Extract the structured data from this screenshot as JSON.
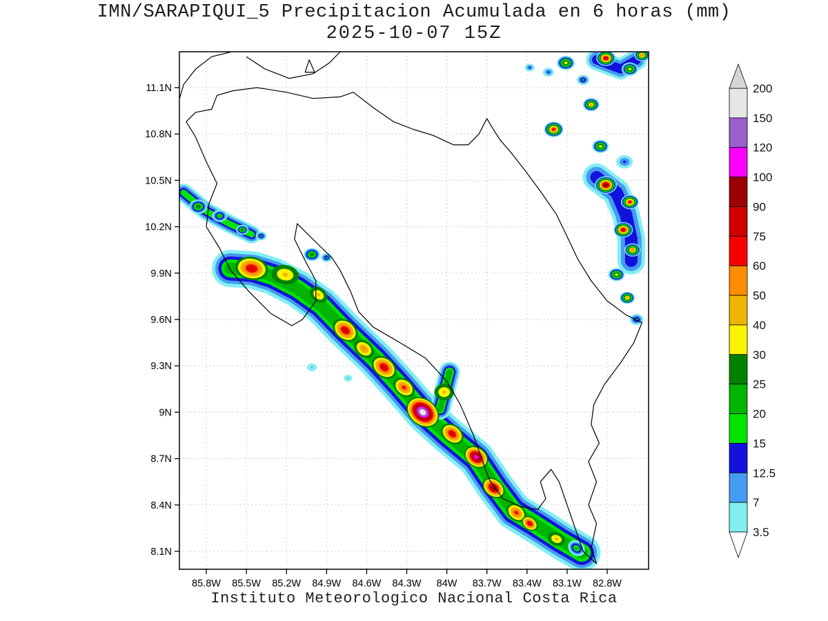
{
  "header": {
    "title_line1": "IMN/SARAPIQUI_5 Precipitacion Acumulada en 6 horas (mm)",
    "title_line2": "2025-10-07 15Z"
  },
  "footer": {
    "caption": "Instituto Meteorologico Nacional Costa Rica"
  },
  "chart_data": {
    "type": "heatmap",
    "title": "IMN/SARAPIQUI_5 Precipitacion Acumulada en 6 horas (mm)",
    "subtitle": "2025-10-07 15Z",
    "variable": "6-hour accumulated precipitation",
    "units": "mm",
    "axes": {
      "lon": {
        "labels": [
          "85.8W",
          "85.5W",
          "85.2W",
          "84.9W",
          "84.6W",
          "84.3W",
          "84W",
          "83.7W",
          "83.4W",
          "83.1W",
          "82.8W"
        ],
        "values": [
          85.8,
          85.5,
          85.2,
          84.9,
          84.6,
          84.3,
          84.0,
          83.7,
          83.4,
          83.1,
          82.8
        ]
      },
      "lat": {
        "labels": [
          "11.1N",
          "10.8N",
          "10.5N",
          "10.2N",
          "9.9N",
          "9.6N",
          "9.3N",
          "9N",
          "8.7N",
          "8.4N",
          "8.1N"
        ],
        "values": [
          11.1,
          10.8,
          10.5,
          10.2,
          9.9,
          9.6,
          9.3,
          9.0,
          8.7,
          8.4,
          8.1
        ]
      },
      "grid": "dotted"
    },
    "colorbar": {
      "boundaries_top_to_bottom": [
        200,
        150,
        120,
        100,
        90,
        75,
        60,
        50,
        40,
        30,
        25,
        20,
        15,
        12.5,
        7,
        3.5
      ],
      "boundary_labels": [
        "200",
        "150",
        "120",
        "100",
        "90",
        "75",
        "60",
        "50",
        "40",
        "30",
        "25",
        "20",
        "15",
        "12.5",
        "7",
        "3.5"
      ],
      "levels_ascending": [
        3.5,
        7,
        12.5,
        15,
        20,
        25,
        30,
        40,
        50,
        60,
        75,
        90,
        100,
        120,
        150
      ],
      "band_colors": {
        "3.5": "#82eef2",
        "7": "#459bf0",
        "12.5": "#1212dc",
        "15": "#00e400",
        "20": "#00b400",
        "25": "#008200",
        "30": "#fbf300",
        "40": "#eeb400",
        "50": "#fd8d00",
        "60": "#f80000",
        "75": "#d00000",
        "90": "#9c0000",
        "100": "#fa00fa",
        "120": "#9a5fce",
        "150": "#e6e6e6"
      },
      "over_color": "#d6d6d6",
      "under_color": "#ffffff"
    },
    "map_outline": [
      {
        "name": "costa-rica-outline",
        "closed": true,
        "points": [
          [
            85.72,
            11.05
          ],
          [
            85.6,
            11.08
          ],
          [
            85.42,
            11.1
          ],
          [
            85.2,
            11.07
          ],
          [
            85.0,
            11.03
          ],
          [
            84.8,
            11.04
          ],
          [
            84.7,
            11.07
          ],
          [
            84.55,
            10.97
          ],
          [
            84.4,
            10.88
          ],
          [
            84.25,
            10.83
          ],
          [
            84.1,
            10.79
          ],
          [
            83.95,
            10.73
          ],
          [
            83.84,
            10.73
          ],
          [
            83.76,
            10.8
          ],
          [
            83.7,
            10.9
          ],
          [
            83.66,
            10.84
          ],
          [
            83.6,
            10.76
          ],
          [
            83.52,
            10.68
          ],
          [
            83.42,
            10.57
          ],
          [
            83.3,
            10.43
          ],
          [
            83.18,
            10.28
          ],
          [
            83.08,
            10.1
          ],
          [
            83.02,
            9.99
          ],
          [
            82.92,
            9.85
          ],
          [
            82.8,
            9.72
          ],
          [
            82.66,
            9.63
          ],
          [
            82.54,
            9.58
          ],
          [
            82.6,
            9.45
          ],
          [
            82.7,
            9.32
          ],
          [
            82.82,
            9.18
          ],
          [
            82.9,
            9.05
          ],
          [
            82.92,
            8.92
          ],
          [
            82.86,
            8.8
          ],
          [
            82.94,
            8.68
          ],
          [
            82.88,
            8.55
          ],
          [
            82.94,
            8.4
          ],
          [
            82.88,
            8.28
          ],
          [
            82.92,
            8.12
          ],
          [
            82.88,
            8.02
          ],
          [
            82.98,
            8.1
          ],
          [
            83.04,
            8.25
          ],
          [
            83.1,
            8.4
          ],
          [
            83.16,
            8.55
          ],
          [
            83.22,
            8.63
          ],
          [
            83.3,
            8.55
          ],
          [
            83.26,
            8.44
          ],
          [
            83.32,
            8.37
          ],
          [
            83.45,
            8.39
          ],
          [
            83.58,
            8.44
          ],
          [
            83.68,
            8.56
          ],
          [
            83.74,
            8.7
          ],
          [
            83.8,
            8.85
          ],
          [
            83.9,
            9.05
          ],
          [
            84.0,
            9.2
          ],
          [
            84.16,
            9.35
          ],
          [
            84.35,
            9.45
          ],
          [
            84.55,
            9.55
          ],
          [
            84.66,
            9.65
          ],
          [
            84.72,
            9.78
          ],
          [
            84.8,
            9.92
          ],
          [
            84.86,
            10.0
          ],
          [
            84.98,
            10.1
          ],
          [
            85.12,
            10.22
          ],
          [
            85.14,
            10.12
          ],
          [
            85.06,
            9.98
          ],
          [
            84.98,
            9.85
          ],
          [
            84.98,
            9.72
          ],
          [
            85.08,
            9.6
          ],
          [
            85.16,
            9.56
          ],
          [
            85.32,
            9.64
          ],
          [
            85.48,
            9.78
          ],
          [
            85.62,
            9.92
          ],
          [
            85.7,
            10.06
          ],
          [
            85.8,
            10.2
          ],
          [
            85.78,
            10.35
          ],
          [
            85.72,
            10.48
          ],
          [
            85.8,
            10.62
          ],
          [
            85.88,
            10.78
          ],
          [
            85.95,
            10.88
          ],
          [
            85.88,
            10.94
          ],
          [
            85.76,
            10.96
          ]
        ]
      },
      {
        "name": "nicaragua-pacific-coast",
        "closed": false,
        "points": [
          [
            86.01,
            11.0
          ],
          [
            85.97,
            11.12
          ],
          [
            85.88,
            11.22
          ],
          [
            85.76,
            11.3
          ],
          [
            85.62,
            11.33
          ]
        ]
      },
      {
        "name": "lake-nicaragua-shore",
        "closed": false,
        "points": [
          [
            85.5,
            11.3
          ],
          [
            85.36,
            11.22
          ],
          [
            85.18,
            11.16
          ],
          [
            85.0,
            11.19
          ],
          [
            84.88,
            11.26
          ],
          [
            84.8,
            11.33
          ]
        ]
      },
      {
        "name": "lake-island",
        "closed": true,
        "points": [
          [
            85.06,
            11.2
          ],
          [
            84.99,
            11.2
          ],
          [
            85.03,
            11.28
          ]
        ]
      }
    ],
    "precip": {
      "bands": [
        {
          "name": "pacific-main-band",
          "strokes": [
            [
              3.5,
              54
            ],
            [
              7,
              44
            ],
            [
              12.5,
              35
            ],
            [
              15,
              26
            ],
            [
              20,
              17
            ]
          ],
          "points": [
            [
              85.62,
              9.93
            ],
            [
              85.45,
              9.92
            ],
            [
              85.3,
              9.88
            ],
            [
              85.12,
              9.8
            ],
            [
              84.94,
              9.69
            ],
            [
              84.76,
              9.53
            ],
            [
              84.53,
              9.34
            ],
            [
              84.35,
              9.17
            ],
            [
              84.17,
              8.99
            ],
            [
              83.99,
              8.85
            ],
            [
              83.78,
              8.7
            ],
            [
              83.64,
              8.52
            ],
            [
              83.5,
              8.36
            ],
            [
              83.33,
              8.27
            ],
            [
              83.15,
              8.17
            ],
            [
              82.99,
              8.09
            ]
          ]
        },
        {
          "name": "central-arm",
          "strokes": [
            [
              3.5,
              30
            ],
            [
              7,
              24
            ],
            [
              12.5,
              18
            ],
            [
              15,
              13
            ],
            [
              20,
              8
            ]
          ],
          "points": [
            [
              84.05,
              9.02
            ],
            [
              84.01,
              9.16
            ],
            [
              83.98,
              9.26
            ]
          ]
        },
        {
          "name": "guanacaste-band",
          "strokes": [
            [
              3.5,
              26
            ],
            [
              7,
              20
            ],
            [
              12.5,
              14
            ],
            [
              15,
              9
            ]
          ],
          "points": [
            [
              85.97,
              10.42
            ],
            [
              85.8,
              10.3
            ],
            [
              85.63,
              10.22
            ],
            [
              85.46,
              10.15
            ]
          ]
        },
        {
          "name": "caribbean-chain",
          "strokes": [
            [
              3.5,
              40
            ],
            [
              7,
              30
            ],
            [
              12.5,
              18
            ]
          ],
          "points": [
            [
              82.88,
              10.52
            ],
            [
              82.73,
              10.42
            ],
            [
              82.66,
              10.28
            ],
            [
              82.62,
              10.12
            ],
            [
              82.62,
              9.98
            ]
          ]
        },
        {
          "name": "caribbean-top-chain",
          "strokes": [
            [
              3.5,
              30
            ],
            [
              7,
              22
            ],
            [
              12.5,
              13
            ]
          ],
          "points": [
            [
              82.88,
              11.28
            ],
            [
              82.7,
              11.22
            ],
            [
              82.58,
              11.28
            ]
          ]
        }
      ],
      "cells": [
        {
          "lon": 85.86,
          "lat": 10.33,
          "max": 25,
          "r": 13
        },
        {
          "lon": 85.7,
          "lat": 10.27,
          "max": 20,
          "r": 11
        },
        {
          "lon": 85.53,
          "lat": 10.18,
          "max": 25,
          "r": 9
        },
        {
          "lon": 85.39,
          "lat": 10.14,
          "max": 15,
          "r": 8
        },
        {
          "lon": 85.01,
          "lat": 10.02,
          "max": 25,
          "r": 12
        },
        {
          "lon": 84.9,
          "lat": 10.0,
          "max": 15,
          "r": 8
        },
        {
          "lon": 85.01,
          "lat": 9.29,
          "max": 7,
          "r": 7
        },
        {
          "lon": 84.74,
          "lat": 9.22,
          "max": 7,
          "r": 6
        },
        {
          "lon": 83.11,
          "lat": 11.26,
          "max": 30,
          "r": 13
        },
        {
          "lon": 82.98,
          "lat": 11.15,
          "max": 15,
          "r": 9
        },
        {
          "lon": 83.24,
          "lat": 11.2,
          "max": 12.5,
          "r": 8
        },
        {
          "lon": 83.38,
          "lat": 11.23,
          "max": 12.5,
          "r": 7
        },
        {
          "lon": 82.81,
          "lat": 11.29,
          "max": 75,
          "r": 14
        },
        {
          "lon": 82.63,
          "lat": 11.22,
          "max": 30,
          "r": 12
        },
        {
          "lon": 82.54,
          "lat": 11.31,
          "max": 50,
          "r": 11
        },
        {
          "lon": 82.92,
          "lat": 10.99,
          "max": 40,
          "r": 12
        },
        {
          "lon": 83.2,
          "lat": 10.83,
          "max": 60,
          "r": 14
        },
        {
          "lon": 82.85,
          "lat": 10.72,
          "max": 30,
          "r": 12
        },
        {
          "lon": 82.67,
          "lat": 10.62,
          "max": 12.5,
          "r": 12
        },
        {
          "lon": 82.81,
          "lat": 10.47,
          "max": 90,
          "r": 16
        },
        {
          "lon": 82.63,
          "lat": 10.36,
          "max": 60,
          "r": 13
        },
        {
          "lon": 82.68,
          "lat": 10.18,
          "max": 75,
          "r": 14
        },
        {
          "lon": 82.61,
          "lat": 10.05,
          "max": 50,
          "r": 12
        },
        {
          "lon": 82.73,
          "lat": 9.89,
          "max": 30,
          "r": 12
        },
        {
          "lon": 82.65,
          "lat": 9.74,
          "max": 40,
          "r": 11
        },
        {
          "lon": 82.58,
          "lat": 9.6,
          "max": 15,
          "r": 10
        },
        {
          "lon": 83.03,
          "lat": 8.12,
          "max": 20,
          "r": 13,
          "rot": 38
        },
        {
          "lon": 85.46,
          "lat": 9.93,
          "max": 75,
          "r": 24,
          "rot": 10,
          "base": 25,
          "ar": 0.7
        },
        {
          "lon": 85.21,
          "lat": 9.89,
          "max": 40,
          "r": 20,
          "rot": 10,
          "base": 25,
          "ar": 0.7
        },
        {
          "lon": 84.96,
          "lat": 9.76,
          "max": 40,
          "r": 14,
          "rot": 38,
          "base": 25,
          "ar": 0.72
        },
        {
          "lon": 84.76,
          "lat": 9.53,
          "max": 75,
          "r": 20,
          "rot": 38,
          "base": 25,
          "ar": 0.72
        },
        {
          "lon": 84.62,
          "lat": 9.41,
          "max": 50,
          "r": 16,
          "rot": 38,
          "base": 25,
          "ar": 0.72
        },
        {
          "lon": 84.47,
          "lat": 9.29,
          "max": 75,
          "r": 20,
          "rot": 38,
          "base": 25,
          "ar": 0.72
        },
        {
          "lon": 84.32,
          "lat": 9.16,
          "max": 60,
          "r": 17,
          "rot": 38,
          "base": 25,
          "ar": 0.72
        },
        {
          "lon": 84.18,
          "lat": 9.0,
          "max": 150,
          "r": 26,
          "rot": 38,
          "base": 25,
          "ar": 0.75
        },
        {
          "lon": 84.02,
          "lat": 9.13,
          "max": 40,
          "r": 14,
          "rot": 0,
          "base": 25,
          "ar": 0.85
        },
        {
          "lon": 83.96,
          "lat": 8.86,
          "max": 75,
          "r": 18,
          "rot": 38,
          "base": 25,
          "ar": 0.72
        },
        {
          "lon": 83.78,
          "lat": 8.71,
          "max": 100,
          "r": 19,
          "rot": 38,
          "base": 25,
          "ar": 0.75
        },
        {
          "lon": 83.65,
          "lat": 8.51,
          "max": 90,
          "r": 18,
          "rot": 38,
          "base": 25,
          "ar": 0.72
        },
        {
          "lon": 83.48,
          "lat": 8.35,
          "max": 60,
          "r": 16,
          "rot": 38,
          "base": 25,
          "ar": 0.72
        },
        {
          "lon": 83.38,
          "lat": 8.28,
          "max": 75,
          "r": 13,
          "rot": 38,
          "base": 25,
          "ar": 0.72
        },
        {
          "lon": 83.18,
          "lat": 8.18,
          "max": 40,
          "r": 13,
          "rot": 20,
          "base": 25,
          "ar": 0.72
        }
      ]
    }
  }
}
